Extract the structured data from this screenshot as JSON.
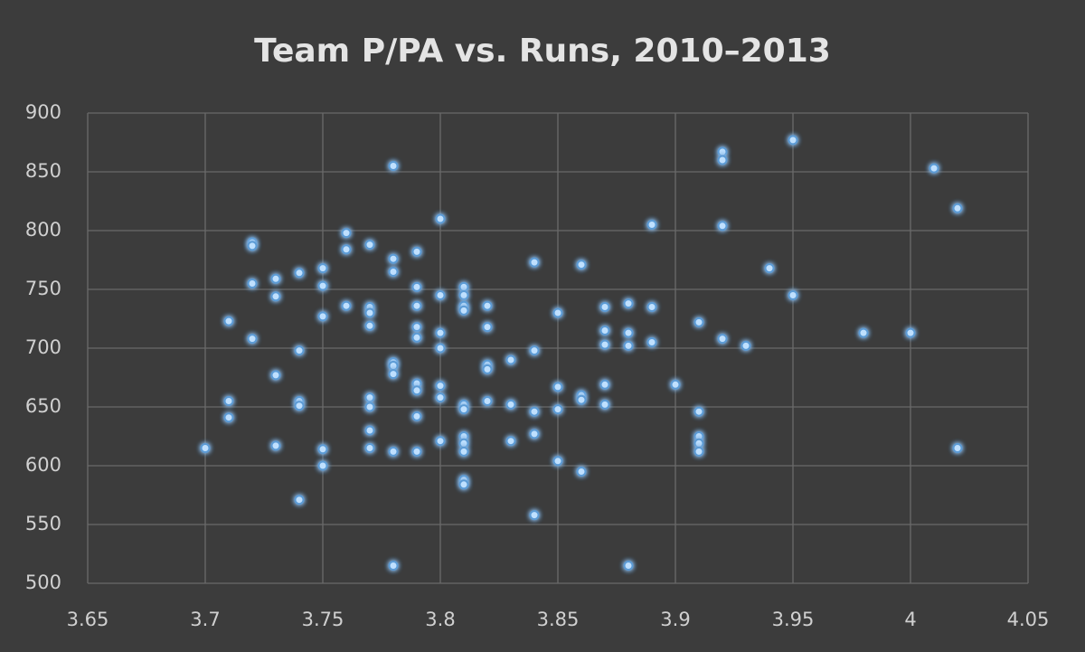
{
  "chart_data": {
    "type": "scatter",
    "title": "Team P/PA vs. Runs, 2010–2013",
    "x": [
      3.7,
      3.71,
      3.71,
      3.71,
      3.72,
      3.72,
      3.72,
      3.72,
      3.73,
      3.73,
      3.73,
      3.73,
      3.74,
      3.74,
      3.74,
      3.74,
      3.74,
      3.75,
      3.75,
      3.75,
      3.75,
      3.75,
      3.76,
      3.76,
      3.76,
      3.77,
      3.77,
      3.77,
      3.77,
      3.77,
      3.77,
      3.77,
      3.77,
      3.78,
      3.78,
      3.78,
      3.78,
      3.78,
      3.78,
      3.78,
      3.78,
      3.79,
      3.79,
      3.79,
      3.79,
      3.79,
      3.79,
      3.79,
      3.79,
      3.79,
      3.8,
      3.8,
      3.8,
      3.8,
      3.8,
      3.8,
      3.8,
      3.81,
      3.81,
      3.81,
      3.81,
      3.81,
      3.81,
      3.81,
      3.81,
      3.81,
      3.81,
      3.81,
      3.82,
      3.82,
      3.82,
      3.82,
      3.82,
      3.83,
      3.83,
      3.83,
      3.84,
      3.84,
      3.84,
      3.84,
      3.84,
      3.85,
      3.85,
      3.85,
      3.85,
      3.86,
      3.86,
      3.86,
      3.86,
      3.87,
      3.87,
      3.87,
      3.87,
      3.87,
      3.88,
      3.88,
      3.88,
      3.88,
      3.89,
      3.89,
      3.89,
      3.9,
      3.91,
      3.91,
      3.91,
      3.91,
      3.91,
      3.92,
      3.92,
      3.92,
      3.92,
      3.93,
      3.94,
      3.95,
      3.95,
      3.98,
      4.0,
      4.01,
      4.02,
      4.02
    ],
    "values": [
      615,
      723,
      655,
      641,
      790,
      787,
      755,
      708,
      759,
      744,
      677,
      617,
      764,
      698,
      655,
      651,
      571,
      768,
      753,
      727,
      614,
      600,
      798,
      784,
      736,
      788,
      735,
      730,
      719,
      658,
      650,
      630,
      615,
      855,
      776,
      765,
      688,
      685,
      678,
      612,
      515,
      782,
      752,
      736,
      718,
      709,
      670,
      664,
      642,
      612,
      810,
      745,
      713,
      700,
      668,
      658,
      621,
      752,
      745,
      736,
      732,
      652,
      648,
      625,
      619,
      612,
      588,
      584,
      736,
      718,
      686,
      682,
      655,
      690,
      652,
      621,
      773,
      698,
      646,
      627,
      558,
      730,
      667,
      648,
      604,
      771,
      660,
      656,
      595,
      735,
      715,
      703,
      669,
      652,
      738,
      713,
      702,
      515,
      805,
      735,
      705,
      669,
      722,
      646,
      625,
      619,
      612,
      867,
      860,
      804,
      708,
      702,
      768,
      877,
      745,
      713,
      713,
      853,
      819,
      615
    ],
    "color": "#bfe0ff",
    "xlim": [
      3.65,
      4.05
    ],
    "xticks": [
      3.65,
      3.7,
      3.75,
      3.8,
      3.85,
      3.9,
      3.95,
      4,
      4.05
    ],
    "ylim": [
      500,
      900
    ],
    "yticks": [
      500,
      550,
      600,
      650,
      700,
      750,
      800,
      850,
      900
    ],
    "grid": true
  }
}
